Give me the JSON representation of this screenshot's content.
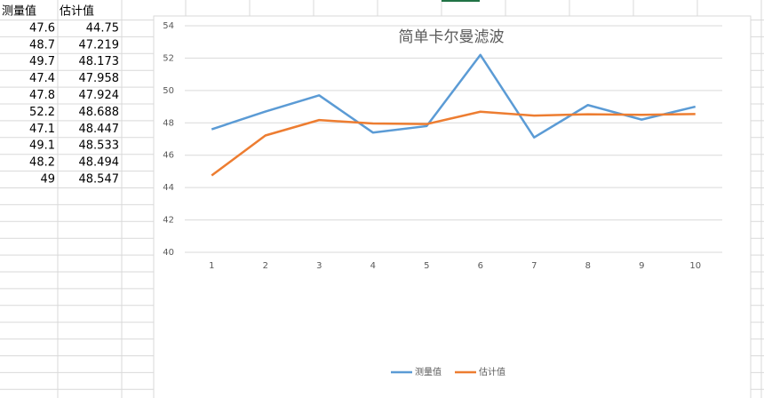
{
  "sheet": {
    "headers": [
      "测量值",
      "估计值"
    ],
    "rows": [
      [
        47.6,
        44.75
      ],
      [
        48.7,
        47.219
      ],
      [
        49.7,
        48.173
      ],
      [
        47.4,
        47.958
      ],
      [
        47.8,
        47.924
      ],
      [
        52.2,
        48.688
      ],
      [
        47.1,
        48.447
      ],
      [
        49.1,
        48.533
      ],
      [
        48.2,
        48.494
      ],
      [
        49,
        48.547
      ]
    ]
  },
  "chart_data": {
    "type": "line",
    "title": "简单卡尔曼滤波",
    "categories": [
      "1",
      "2",
      "3",
      "4",
      "5",
      "6",
      "7",
      "8",
      "9",
      "10"
    ],
    "series": [
      {
        "name": "测量值",
        "color": "#5b9bd5",
        "values": [
          47.6,
          48.7,
          49.7,
          47.4,
          47.8,
          52.2,
          47.1,
          49.1,
          48.2,
          49
        ]
      },
      {
        "name": "估计值",
        "color": "#ed7d31",
        "values": [
          44.75,
          47.219,
          48.173,
          47.958,
          47.924,
          48.688,
          48.447,
          48.533,
          48.494,
          48.547
        ]
      }
    ],
    "ylim": [
      40,
      54
    ],
    "yticks": [
      40,
      42,
      44,
      46,
      48,
      50,
      52,
      54
    ],
    "grid": true,
    "legend": "bottom"
  }
}
